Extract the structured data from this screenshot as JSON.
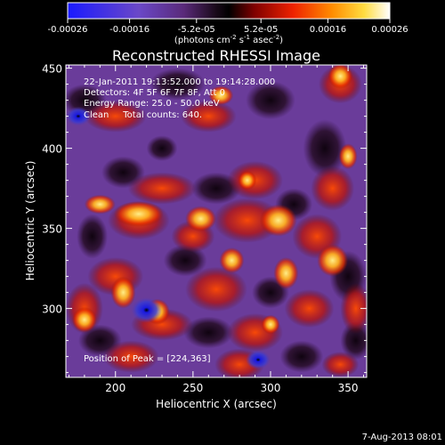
{
  "chart_data": {
    "type": "heatmap",
    "title": "Reconstructed RHESSI Image",
    "xlabel": "Heliocentric X (arcsec)",
    "ylabel": "Heliocentric Y (arcsec)",
    "xlim": [
      168,
      362
    ],
    "ylim": [
      257,
      452
    ],
    "x_ticks": [
      200,
      250,
      300,
      350
    ],
    "y_ticks": [
      300,
      350,
      400,
      450
    ],
    "x_tick_labels": [
      "200",
      "250",
      "300",
      "350"
    ],
    "y_tick_labels": [
      "300",
      "350",
      "400",
      "450"
    ],
    "colorbar": {
      "min": -0.00026,
      "max": 0.00026,
      "tick_values": [
        -0.00026,
        -0.00016,
        -5.2e-05,
        5.2e-05,
        0.00016,
        0.00026
      ],
      "tick_labels": [
        "-0.00026",
        "-0.00016",
        "-5.2e-05",
        "5.2e-05",
        "0.00016",
        "0.00026"
      ],
      "label_parts": [
        "(photons cm",
        "-2",
        " s",
        "-1",
        " asec",
        "-2",
        ")"
      ],
      "colors": {
        "negative_deep": "#0000ff",
        "zero": "#000000",
        "positive_mid": "#ff0000",
        "positive_high": "#ffff00",
        "positive_top": "#ffffff"
      }
    },
    "annotations": {
      "time_range": "22-Jan-2011 19:13:52.000 to 19:14:28.000",
      "detectors": "Detectors: 4F 5F 6F 7F 8F, Att 0",
      "energy_range": "Energy Range: 25.0 - 50.0 keV",
      "method": "Clean     Total counts: 640.",
      "peak": "Position of Peak = [224,363]"
    },
    "footer": "7-Aug-2013 08:01"
  }
}
